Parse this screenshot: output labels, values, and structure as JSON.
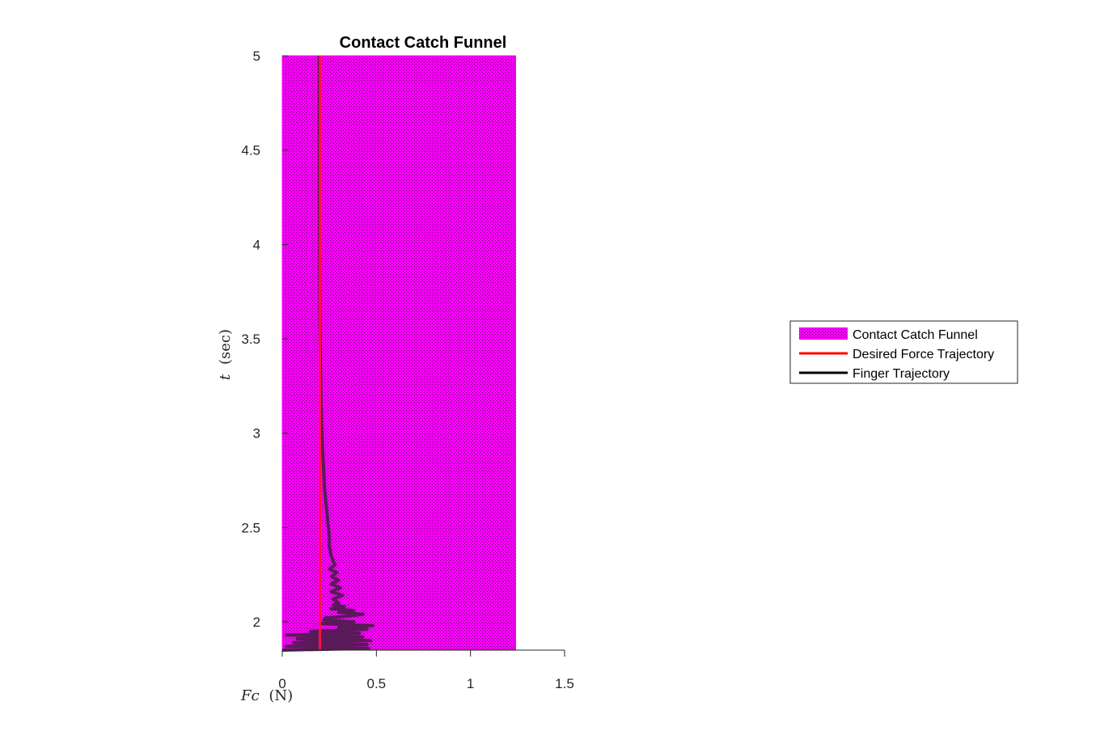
{
  "chart_data": {
    "type": "line",
    "title": "Contact Catch Funnel",
    "xlabel": {
      "var": "Fc",
      "unit": "(N)"
    },
    "ylabel": {
      "var": "t",
      "unit": "(sec)"
    },
    "xlim": [
      0,
      1.5
    ],
    "ylim": [
      1.85,
      5
    ],
    "xticks": [
      0,
      0.5,
      1,
      1.5
    ],
    "xtick_labels": [
      "0",
      "0.5",
      "1",
      "1.5"
    ],
    "yticks": [
      2,
      2.5,
      3,
      3.5,
      4,
      4.5,
      5
    ],
    "ytick_labels": [
      "2",
      "2.5",
      "3",
      "3.5",
      "4",
      "4.5",
      "5"
    ],
    "grid": false,
    "legend_position": "right",
    "colors": {
      "funnel": "#ff00ff",
      "desired": "#ff0000",
      "finger": "#000000"
    },
    "funnel": {
      "name": "Contact Catch Funnel",
      "x_range": [
        0,
        1.24
      ],
      "t_range": [
        1.85,
        5
      ]
    },
    "series": [
      {
        "name": "Desired Force Trajectory",
        "t": [
          1.85,
          5
        ],
        "x": [
          0.2,
          0.2
        ]
      },
      {
        "name": "Finger Trajectory",
        "t": [
          1.85,
          1.86,
          1.87,
          1.88,
          1.89,
          1.9,
          1.91,
          1.92,
          1.93,
          1.94,
          1.95,
          1.96,
          1.97,
          1.98,
          1.99,
          2.0,
          2.01,
          2.02,
          2.03,
          2.04,
          2.05,
          2.06,
          2.07,
          2.08,
          2.09,
          2.1,
          2.12,
          2.14,
          2.16,
          2.18,
          2.2,
          2.22,
          2.24,
          2.26,
          2.28,
          2.3,
          2.35,
          2.4,
          2.45,
          2.5,
          2.6,
          2.7,
          2.8,
          2.9,
          3.0,
          3.2,
          3.4,
          3.6,
          3.8,
          4.0,
          4.3,
          4.6,
          5.0
        ],
        "x": [
          0.0,
          0.46,
          0.02,
          0.45,
          0.06,
          0.47,
          0.08,
          0.43,
          0.02,
          0.41,
          0.15,
          0.45,
          0.3,
          0.48,
          0.2,
          0.38,
          0.22,
          0.23,
          0.35,
          0.43,
          0.3,
          0.38,
          0.26,
          0.33,
          0.27,
          0.3,
          0.27,
          0.32,
          0.26,
          0.31,
          0.26,
          0.3,
          0.26,
          0.29,
          0.25,
          0.28,
          0.26,
          0.25,
          0.25,
          0.245,
          0.235,
          0.225,
          0.22,
          0.215,
          0.21,
          0.205,
          0.202,
          0.2,
          0.199,
          0.198,
          0.197,
          0.197,
          0.197
        ]
      }
    ]
  }
}
